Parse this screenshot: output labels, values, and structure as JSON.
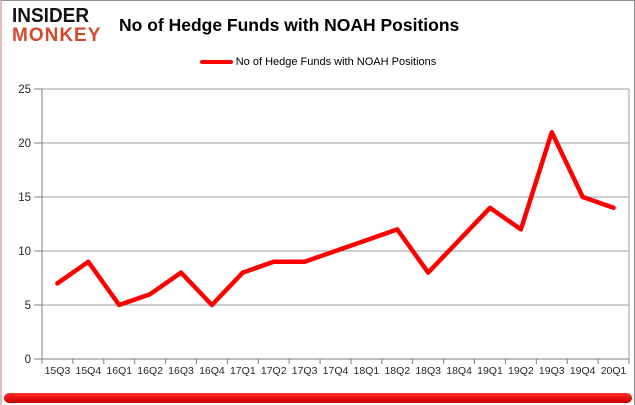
{
  "logo": {
    "line1": "INSIDER",
    "line2": "MONKEY"
  },
  "header": {
    "title": "No of Hedge Funds with NOAH Positions"
  },
  "legend": {
    "label": "No of Hedge Funds with NOAH Positions"
  },
  "colors": {
    "series_red": "#ff0000",
    "logo_red": "#d24a2c",
    "gridline": "#9e9e9e",
    "axis": "#7f7f7f",
    "tick_label": "#262626",
    "bottom_bar_red": "#ee1212"
  },
  "chart_data": {
    "type": "line",
    "title": "No of Hedge Funds with NOAH Positions",
    "categories": [
      "15Q3",
      "15Q4",
      "16Q1",
      "16Q2",
      "16Q3",
      "16Q4",
      "17Q1",
      "17Q2",
      "17Q3",
      "17Q4",
      "18Q1",
      "18Q2",
      "18Q3",
      "18Q4",
      "19Q1",
      "19Q2",
      "19Q3",
      "19Q4",
      "20Q1"
    ],
    "series": [
      {
        "name": "No of Hedge Funds with NOAH Positions",
        "color": "#ff0000",
        "values": [
          7,
          9,
          5,
          6,
          8,
          5,
          8,
          9,
          9,
          10,
          11,
          12,
          8,
          11,
          14,
          12,
          21,
          15,
          14
        ]
      }
    ],
    "xlabel": "",
    "ylabel": "",
    "ylim": [
      0,
      25
    ],
    "yticks": [
      0,
      5,
      10,
      15,
      20,
      25
    ],
    "grid": true,
    "legend_position": "top-center"
  }
}
